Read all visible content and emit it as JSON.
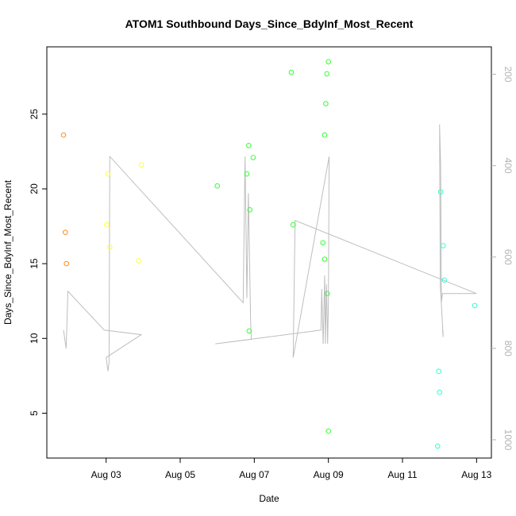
{
  "chart_data": {
    "type": "scatter",
    "title": "ATOM1 Southbound Days_Since_BdyInf_Most_Recent",
    "xlabel": "Date",
    "ylabel": "Days_Since_BdyInf_Most_Recent",
    "x_ticks": [
      {
        "day": 3,
        "label": "Aug 03"
      },
      {
        "day": 5,
        "label": "Aug 05"
      },
      {
        "day": 7,
        "label": "Aug 07"
      },
      {
        "day": 9,
        "label": "Aug 09"
      },
      {
        "day": 11,
        "label": "Aug 11"
      },
      {
        "day": 13,
        "label": "Aug 13"
      }
    ],
    "xlim": [
      1.4,
      13.4
    ],
    "y_ticks": [
      {
        "value": 5,
        "label": "5"
      },
      {
        "value": 10,
        "label": "10"
      },
      {
        "value": 15,
        "label": "15"
      },
      {
        "value": 20,
        "label": "20"
      },
      {
        "value": 25,
        "label": "25"
      }
    ],
    "ylim": [
      2.0,
      29.5
    ],
    "y2_ticks": [
      {
        "value": 200,
        "label": "200"
      },
      {
        "value": 400,
        "label": "400"
      },
      {
        "value": 600,
        "label": "600"
      },
      {
        "value": 800,
        "label": "800"
      },
      {
        "value": 1000,
        "label": "1000"
      }
    ],
    "y2lim": [
      1040,
      140
    ],
    "y2_reversed": true,
    "grid": false,
    "series": [
      {
        "color": "#ff8c1a",
        "points": [
          [
            1.85,
            23.6
          ],
          [
            1.9,
            17.1
          ],
          [
            1.93,
            15.0
          ]
        ]
      },
      {
        "color": "#ffff33",
        "points": [
          [
            3.02,
            17.6
          ],
          [
            3.05,
            21.0
          ],
          [
            3.1,
            16.1
          ],
          [
            3.88,
            15.2
          ],
          [
            3.95,
            21.6
          ]
        ]
      },
      {
        "color": "#33ff33",
        "points": [
          [
            6.0,
            20.2
          ],
          [
            6.8,
            21.0
          ],
          [
            6.85,
            22.9
          ],
          [
            6.88,
            18.6
          ],
          [
            6.86,
            10.5
          ],
          [
            6.97,
            22.1
          ],
          [
            8.0,
            27.8
          ],
          [
            8.05,
            17.6
          ],
          [
            8.85,
            16.4
          ],
          [
            8.9,
            15.3
          ],
          [
            8.9,
            23.6
          ],
          [
            8.93,
            25.7
          ],
          [
            8.96,
            27.7
          ],
          [
            8.97,
            13.0
          ],
          [
            9.0,
            28.5
          ],
          [
            9.0,
            3.8
          ]
        ]
      },
      {
        "color": "#33ffcc",
        "points": [
          [
            11.95,
            2.8
          ],
          [
            11.98,
            7.8
          ],
          [
            12.0,
            6.4
          ],
          [
            12.03,
            19.8
          ],
          [
            12.1,
            16.2
          ],
          [
            12.13,
            13.9
          ],
          [
            12.95,
            12.2
          ]
        ]
      }
    ],
    "depth_line": {
      "color": "#bebebe",
      "points": [
        [
          1.85,
          760
        ],
        [
          1.92,
          800
        ],
        [
          1.97,
          675
        ],
        [
          2.95,
          760
        ],
        [
          3.95,
          770
        ],
        [
          3.0,
          820
        ],
        [
          3.05,
          850
        ],
        [
          3.08,
          830
        ],
        [
          3.1,
          380
        ],
        [
          6.7,
          700
        ],
        [
          6.75,
          380
        ],
        [
          6.8,
          690
        ],
        [
          6.84,
          460
        ],
        [
          6.9,
          740
        ],
        [
          6.92,
          780
        ],
        [
          5.95,
          790
        ],
        [
          8.8,
          760
        ],
        [
          8.82,
          670
        ],
        [
          8.86,
          790
        ],
        [
          8.9,
          640
        ],
        [
          8.92,
          790
        ],
        [
          8.95,
          660
        ],
        [
          8.98,
          790
        ],
        [
          9.0,
          700
        ],
        [
          9.02,
          380
        ],
        [
          8.05,
          820
        ],
        [
          8.1,
          520
        ],
        [
          13.0,
          680
        ],
        [
          12.08,
          680
        ],
        [
          12.05,
          700
        ],
        [
          12.03,
          400
        ],
        [
          12.0,
          310
        ],
        [
          12.02,
          660
        ],
        [
          12.1,
          775
        ],
        [
          12.08,
          760
        ]
      ]
    }
  }
}
